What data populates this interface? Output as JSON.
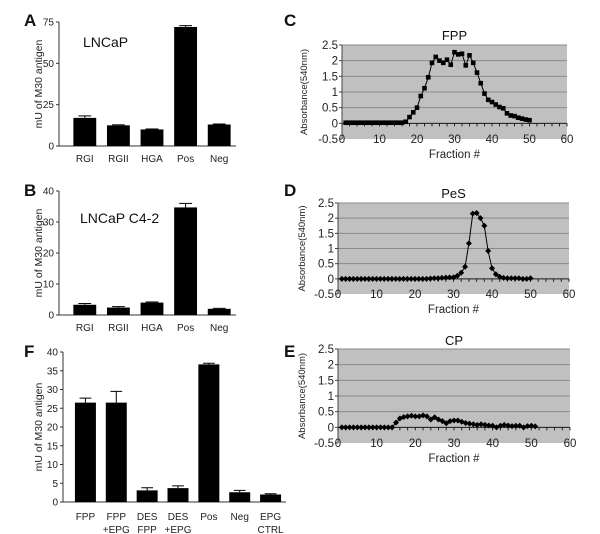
{
  "chart_data": [
    {
      "panel": "A",
      "type": "bar",
      "title": "LNCaP",
      "ylabel": "mU of M30 antigen",
      "xlabel": "",
      "ylim": [
        0,
        75
      ],
      "yticks": [
        "0",
        "25",
        "50",
        "75"
      ],
      "categories": [
        "RGI",
        "RGII",
        "HGA",
        "Pos",
        "Neg"
      ],
      "values": [
        17,
        12.5,
        10,
        72,
        13
      ],
      "errors": [
        1.2,
        0.3,
        0.3,
        0.8,
        0.3
      ]
    },
    {
      "panel": "B",
      "type": "bar",
      "title": "LNCaP C4-2",
      "ylabel": "mU of M30 antigen",
      "xlabel": "",
      "ylim": [
        0,
        40
      ],
      "yticks": [
        "0",
        "10",
        "20",
        "30",
        "40"
      ],
      "categories": [
        "RGI",
        "RGII",
        "HGA",
        "Pos",
        "Neg"
      ],
      "values": [
        3.3,
        2.4,
        4.0,
        34.7,
        2.0
      ],
      "errors": [
        0.4,
        0.3,
        0.2,
        1.3,
        0.15
      ]
    },
    {
      "panel": "F",
      "type": "bar",
      "title": "",
      "ylabel": "mU of M30 antigen",
      "xlabel": "",
      "ylim": [
        0,
        40
      ],
      "yticks": [
        "0",
        "5",
        "10",
        "15",
        "20",
        "25",
        "30",
        "35",
        "40"
      ],
      "categories": [
        [
          "FPP"
        ],
        [
          "FPP",
          "+EPG"
        ],
        [
          "DES",
          "FPP"
        ],
        [
          "DES",
          "+EPG"
        ],
        [
          "Pos"
        ],
        [
          "Neg"
        ],
        [
          "EPG",
          "CTRL"
        ]
      ],
      "values": [
        26.5,
        26.5,
        3.1,
        3.7,
        36.7,
        2.6,
        2.0
      ],
      "errors": [
        1.2,
        3.0,
        0.7,
        0.6,
        0.3,
        0.5,
        0.2
      ]
    },
    {
      "panel": "C",
      "type": "line",
      "title": "FPP",
      "xlabel": "Fraction #",
      "ylabel": "Absorbance(540nm)",
      "xlim": [
        0,
        60
      ],
      "ylim": [
        -0.5,
        2.5
      ],
      "xticks": [
        "0",
        "10",
        "20",
        "30",
        "40",
        "50",
        "60"
      ],
      "yticks": [
        "-0.5",
        "0",
        "0.5",
        "1",
        "1.5",
        "2",
        "2.5"
      ],
      "marker": "square",
      "x": [
        1,
        2,
        3,
        4,
        5,
        6,
        7,
        8,
        9,
        10,
        11,
        12,
        13,
        14,
        15,
        16,
        17,
        18,
        19,
        20,
        21,
        22,
        23,
        24,
        25,
        26,
        27,
        28,
        29,
        30,
        31,
        32,
        33,
        34,
        35,
        36,
        37,
        38,
        39,
        40,
        41,
        42,
        43,
        44,
        45,
        46,
        47,
        48,
        49,
        50
      ],
      "y": [
        0.02,
        0.02,
        0.02,
        0.02,
        0.02,
        0.02,
        0.02,
        0.02,
        0.02,
        0.02,
        0.02,
        0.02,
        0.02,
        0.02,
        0.02,
        0.02,
        0.05,
        0.2,
        0.35,
        0.5,
        0.87,
        1.12,
        1.47,
        1.93,
        2.12,
        2.0,
        1.93,
        2.03,
        1.87,
        2.27,
        2.2,
        2.22,
        1.85,
        2.17,
        1.93,
        1.62,
        1.28,
        0.95,
        0.75,
        0.68,
        0.6,
        0.52,
        0.48,
        0.32,
        0.25,
        0.23,
        0.18,
        0.15,
        0.12,
        0.1
      ]
    },
    {
      "panel": "D",
      "type": "line",
      "title": "PeS",
      "xlabel": "Fraction #",
      "ylabel": "Absorbance(540nm)",
      "xlim": [
        0,
        60
      ],
      "ylim": [
        -0.5,
        2.5
      ],
      "xticks": [
        "0",
        "10",
        "20",
        "30",
        "40",
        "50",
        "60"
      ],
      "yticks": [
        "-0.5",
        "0",
        "0.5",
        "1",
        "1.5",
        "2",
        "2.5"
      ],
      "marker": "diamond",
      "x": [
        1,
        2,
        3,
        4,
        5,
        6,
        7,
        8,
        9,
        10,
        11,
        12,
        13,
        14,
        15,
        16,
        17,
        18,
        19,
        20,
        21,
        22,
        23,
        24,
        25,
        26,
        27,
        28,
        29,
        30,
        31,
        32,
        33,
        34,
        35,
        36,
        37,
        38,
        39,
        40,
        41,
        42,
        43,
        44,
        45,
        46,
        47,
        48,
        49,
        50
      ],
      "y": [
        0,
        0,
        0,
        0,
        0,
        0,
        0,
        0,
        0,
        0,
        0,
        0,
        0,
        0,
        0,
        0,
        0,
        0,
        0,
        0,
        0,
        0,
        0,
        0.01,
        0.02,
        0.02,
        0.03,
        0.04,
        0.05,
        0.05,
        0.1,
        0.2,
        0.4,
        1.17,
        2.15,
        2.17,
        2.0,
        1.75,
        0.92,
        0.35,
        0.15,
        0.07,
        0.03,
        0.02,
        0.02,
        0.02,
        0.02,
        0.0,
        0.0,
        0.02
      ]
    },
    {
      "panel": "E",
      "type": "line",
      "title": "CP",
      "xlabel": "Fraction #",
      "ylabel": "Absorbance(540nm)",
      "xlim": [
        0,
        60
      ],
      "ylim": [
        -0.5,
        2.5
      ],
      "xticks": [
        "0",
        "10",
        "20",
        "30",
        "40",
        "50",
        "60"
      ],
      "yticks": [
        "-0.5",
        "0",
        "0.5",
        "1",
        "1.5",
        "2",
        "2.5"
      ],
      "marker": "diamond",
      "x": [
        1,
        2,
        3,
        4,
        5,
        6,
        7,
        8,
        9,
        10,
        11,
        12,
        13,
        14,
        15,
        16,
        17,
        18,
        19,
        20,
        21,
        22,
        23,
        24,
        25,
        26,
        27,
        28,
        29,
        30,
        31,
        32,
        33,
        34,
        35,
        36,
        37,
        38,
        39,
        40,
        41,
        42,
        43,
        44,
        45,
        46,
        47,
        48,
        49,
        50,
        51
      ],
      "y": [
        0,
        0,
        0,
        0,
        0,
        0,
        0,
        0,
        0,
        0,
        0,
        0,
        0,
        0,
        0.15,
        0.28,
        0.33,
        0.35,
        0.37,
        0.35,
        0.35,
        0.38,
        0.35,
        0.25,
        0.32,
        0.25,
        0.2,
        0.13,
        0.2,
        0.22,
        0.22,
        0.18,
        0.14,
        0.12,
        0.1,
        0.08,
        0.1,
        0.08,
        0.06,
        0.05,
        0.0,
        0.05,
        0.08,
        0.06,
        0.04,
        0.05,
        0.05,
        0.0,
        0.04,
        0.05,
        0.03
      ]
    }
  ],
  "panel_labels": [
    "A",
    "B",
    "F",
    "C",
    "D",
    "E"
  ],
  "colors": {
    "bar": "#000000",
    "plot_bg": "#c0c0c0",
    "grid": "#8a8a8a",
    "line": "#000000"
  }
}
